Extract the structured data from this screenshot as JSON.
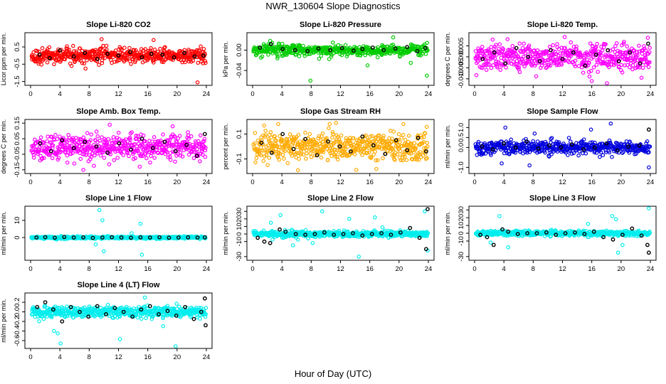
{
  "figure": {
    "title": "NWR_130604  Slope Diagnostics",
    "xlabel": "Hour of Day (UTC)"
  },
  "chart_data": [
    {
      "type": "scatter",
      "title": "Slope Li-820 CO2",
      "ylabel": "Licor ppm per min.",
      "xlim": [
        0,
        24
      ],
      "ylim": [
        -1.6,
        1.2
      ],
      "xticks": [
        "0",
        "4",
        "8",
        "12",
        "16",
        "20",
        "24"
      ],
      "yticks": [
        "-1.5",
        "-0.5",
        "0.5"
      ],
      "ytick_values": [
        -1.5,
        -0.5,
        0.5
      ],
      "series_color": "#ff0000",
      "spread": 0.32,
      "outliers": [
        [
          9.7,
          0.95
        ],
        [
          7.5,
          -0.75
        ],
        [
          16.8,
          0.9
        ],
        [
          22.8,
          -1.55
        ],
        [
          5.6,
          -0.6
        ],
        [
          3.2,
          -0.5
        ]
      ],
      "black_points": [
        [
          1.2,
          0.05
        ],
        [
          2.6,
          -0.15
        ],
        [
          4.0,
          0.3
        ],
        [
          5.9,
          -0.05
        ],
        [
          7.4,
          0.15
        ],
        [
          9.1,
          -0.2
        ],
        [
          10.5,
          0.1
        ],
        [
          12.0,
          0.0
        ],
        [
          13.6,
          0.2
        ],
        [
          15.2,
          -0.1
        ],
        [
          16.5,
          0.1
        ],
        [
          18.0,
          0.05
        ],
        [
          19.6,
          -0.1
        ],
        [
          21.0,
          0.15
        ],
        [
          22.4,
          -0.05
        ],
        [
          23.6,
          0.0
        ]
      ]
    },
    {
      "type": "scatter",
      "title": "Slope Li-820 Pressure",
      "ylabel": "kPa per min.",
      "xlim": [
        0,
        24
      ],
      "ylim": [
        -0.065,
        0.03
      ],
      "xticks": [
        "0",
        "4",
        "8",
        "12",
        "16",
        "20",
        "24"
      ],
      "yticks": [
        "-0.04",
        "0.00"
      ],
      "ytick_values": [
        -0.04,
        0.0
      ],
      "series_color": "#00cc00",
      "spread": 0.008,
      "outliers": [
        [
          7.9,
          -0.06
        ],
        [
          15.7,
          -0.03
        ],
        [
          19.2,
          0.025
        ],
        [
          23.8,
          -0.05
        ],
        [
          2.4,
          0.018
        ],
        [
          21.6,
          -0.025
        ]
      ],
      "black_points": [
        [
          1.0,
          0.005
        ],
        [
          2.5,
          0.012
        ],
        [
          4.1,
          0.002
        ],
        [
          5.8,
          0.0
        ],
        [
          7.5,
          -0.002
        ],
        [
          9.0,
          0.003
        ],
        [
          10.6,
          0.0
        ],
        [
          12.2,
          0.004
        ],
        [
          13.8,
          -0.001
        ],
        [
          15.0,
          0.002
        ],
        [
          16.4,
          0.005
        ],
        [
          17.9,
          0.0
        ],
        [
          19.5,
          0.003
        ],
        [
          21.1,
          0.006
        ],
        [
          22.5,
          -0.002
        ],
        [
          23.6,
          0.004
        ]
      ]
    },
    {
      "type": "scatter",
      "title": "Slope Li-820 Temp.",
      "ylabel": "degrees C per min.",
      "xlim": [
        0,
        24
      ],
      "ylim": [
        -0.012,
        0.01
      ],
      "xticks": [
        "0",
        "4",
        "8",
        "12",
        "16",
        "20",
        "24"
      ],
      "yticks": [
        "-0.010",
        "-0.005",
        "0.000",
        "0.005"
      ],
      "ytick_values": [
        -0.01,
        -0.005,
        0.0,
        0.005
      ],
      "series_color": "#ff00ff",
      "spread": 0.0045,
      "outliers": [
        [
          16.0,
          -0.011
        ],
        [
          12.3,
          0.009
        ],
        [
          22.8,
          -0.0095
        ],
        [
          4.5,
          0.008
        ]
      ],
      "black_points": [
        [
          1.1,
          -0.001
        ],
        [
          2.7,
          0.002
        ],
        [
          4.2,
          -0.003
        ],
        [
          5.7,
          0.004
        ],
        [
          7.3,
          0.0
        ],
        [
          8.9,
          -0.002
        ],
        [
          10.4,
          0.003
        ],
        [
          12.0,
          -0.001
        ],
        [
          13.5,
          0.002
        ],
        [
          15.1,
          -0.004
        ],
        [
          16.6,
          0.001
        ],
        [
          18.2,
          0.003
        ],
        [
          19.7,
          -0.002
        ],
        [
          21.2,
          0.002
        ],
        [
          22.6,
          -0.003
        ],
        [
          23.7,
          0.006
        ]
      ]
    },
    {
      "type": "scatter",
      "title": "Slope Amb. Box Temp.",
      "ylabel": "degrees C per min.",
      "xlim": [
        0,
        24
      ],
      "ylim": [
        -0.16,
        0.16
      ],
      "xticks": [
        "0",
        "4",
        "8",
        "12",
        "16",
        "20",
        "24"
      ],
      "yticks": [
        "-0.15",
        "-0.05",
        "0.05",
        "0.15"
      ],
      "ytick_values": [
        -0.15,
        -0.05,
        0.05,
        0.15
      ],
      "series_color": "#ff00ff",
      "spread": 0.06,
      "outliers": [
        [
          10.8,
          0.14
        ],
        [
          7.2,
          -0.15
        ],
        [
          19.4,
          0.13
        ],
        [
          14.9,
          -0.13
        ]
      ],
      "black_points": [
        [
          1.3,
          0.02
        ],
        [
          2.8,
          -0.03
        ],
        [
          4.3,
          0.04
        ],
        [
          5.9,
          -0.01
        ],
        [
          7.4,
          0.03
        ],
        [
          9.0,
          0.0
        ],
        [
          10.5,
          -0.04
        ],
        [
          12.1,
          0.02
        ],
        [
          13.7,
          -0.02
        ],
        [
          15.2,
          0.05
        ],
        [
          16.7,
          -0.01
        ],
        [
          18.3,
          0.03
        ],
        [
          19.8,
          -0.03
        ],
        [
          21.3,
          0.01
        ],
        [
          22.7,
          -0.06
        ],
        [
          23.8,
          0.08
        ]
      ]
    },
    {
      "type": "scatter",
      "title": "Slope Gas Stream RH",
      "ylabel": "percent per min.",
      "xlim": [
        0,
        24
      ],
      "ylim": [
        -0.2,
        0.2
      ],
      "xticks": [
        "0",
        "4",
        "8",
        "12",
        "16",
        "20",
        "24"
      ],
      "yticks": [
        "-0.1",
        "0.1"
      ],
      "ytick_values": [
        -0.1,
        0.1
      ],
      "series_color": "#ffaa00",
      "spread": 0.09,
      "outliers": [
        [
          3.5,
          0.18
        ],
        [
          6.2,
          -0.19
        ],
        [
          11.4,
          0.19
        ],
        [
          16.9,
          -0.18
        ],
        [
          20.6,
          0.18
        ]
      ],
      "black_points": [
        [
          1.2,
          0.03
        ],
        [
          2.6,
          -0.05
        ],
        [
          4.1,
          0.1
        ],
        [
          5.6,
          -0.02
        ],
        [
          7.2,
          0.06
        ],
        [
          8.8,
          -0.07
        ],
        [
          10.3,
          0.04
        ],
        [
          11.9,
          0.0
        ],
        [
          13.4,
          -0.04
        ],
        [
          15.0,
          0.08
        ],
        [
          16.5,
          0.01
        ],
        [
          18.1,
          -0.06
        ],
        [
          19.6,
          0.05
        ],
        [
          21.1,
          -0.03
        ],
        [
          22.6,
          0.07
        ],
        [
          23.7,
          -0.04
        ]
      ]
    },
    {
      "type": "scatter",
      "title": "Slope Sample Flow",
      "ylabel": "ml/min per min.",
      "xlim": [
        0,
        24
      ],
      "ylim": [
        -1.2,
        1.3
      ],
      "xticks": [
        "0",
        "4",
        "8",
        "12",
        "16",
        "20",
        "24"
      ],
      "yticks": [
        "-1.0",
        "0.0",
        "0.5",
        "1.0"
      ],
      "ytick_values": [
        -1.0,
        0.0,
        0.5,
        1.0
      ],
      "series_color": "#0000dd",
      "spread": 0.25,
      "outliers": [
        [
          3.7,
          -0.8
        ],
        [
          4.2,
          1.0
        ],
        [
          7.5,
          -0.9
        ],
        [
          15.9,
          0.9
        ],
        [
          18.6,
          1.2
        ],
        [
          23.8,
          -1.0
        ],
        [
          8.2,
          0.7
        ]
      ],
      "black_points": [
        [
          1.0,
          0.05
        ],
        [
          2.5,
          -0.1
        ],
        [
          4.0,
          0.2
        ],
        [
          5.6,
          0.0
        ],
        [
          7.1,
          0.3
        ],
        [
          8.7,
          -0.05
        ],
        [
          10.2,
          0.1
        ],
        [
          11.8,
          0.0
        ],
        [
          13.3,
          0.15
        ],
        [
          14.9,
          -0.1
        ],
        [
          16.4,
          0.0
        ],
        [
          18.0,
          0.2
        ],
        [
          19.5,
          -0.15
        ],
        [
          21.0,
          0.05
        ],
        [
          22.5,
          0.1
        ],
        [
          23.8,
          0.9
        ]
      ]
    },
    {
      "type": "scatter",
      "title": "Slope Line 1 Flow",
      "ylabel": "ml/min per min.",
      "xlim": [
        0,
        24
      ],
      "ylim": [
        -12,
        17
      ],
      "xticks": [
        "0",
        "4",
        "8",
        "12",
        "16",
        "20",
        "24"
      ],
      "yticks": [
        "0",
        "10"
      ],
      "ytick_values": [
        0,
        10
      ],
      "series_color": "#00eeee",
      "spread": 0.5,
      "outliers": [
        [
          9.4,
          16
        ],
        [
          8.9,
          -4
        ],
        [
          9.8,
          10
        ],
        [
          10.0,
          -8
        ],
        [
          15.0,
          8
        ],
        [
          15.2,
          -10
        ],
        [
          13.8,
          2.5
        ]
      ],
      "black_points": [
        [
          0.8,
          0.0
        ],
        [
          2.0,
          0.2
        ],
        [
          3.3,
          -0.1
        ],
        [
          4.6,
          0.3
        ],
        [
          5.9,
          0.0
        ],
        [
          7.2,
          0.1
        ],
        [
          8.5,
          -0.2
        ],
        [
          9.8,
          0.0
        ],
        [
          11.1,
          0.2
        ],
        [
          12.4,
          0.0
        ],
        [
          13.7,
          -0.1
        ],
        [
          15.0,
          0.1
        ],
        [
          16.3,
          0.0
        ],
        [
          17.6,
          0.2
        ],
        [
          18.9,
          -0.1
        ],
        [
          20.2,
          0.0
        ],
        [
          21.5,
          0.1
        ],
        [
          22.8,
          0.0
        ],
        [
          23.8,
          0.1
        ]
      ]
    },
    {
      "type": "scatter",
      "title": "Slope Line 2 Flow",
      "ylabel": "ml/min per min.",
      "xlim": [
        0,
        24
      ],
      "ylim": [
        -32,
        34
      ],
      "xticks": [
        "0",
        "4",
        "8",
        "12",
        "16",
        "20",
        "24"
      ],
      "yticks": [
        "-30",
        "-10",
        "0",
        "10",
        "20",
        "30"
      ],
      "ytick_values": [
        -30,
        -10,
        0,
        10,
        20,
        30
      ],
      "series_color": "#00eeee",
      "spread": 3.0,
      "outliers": [
        [
          2.5,
          15
        ],
        [
          3.8,
          25
        ],
        [
          9.5,
          30
        ],
        [
          14.5,
          -30
        ],
        [
          13.2,
          20
        ],
        [
          16.7,
          22
        ],
        [
          8.2,
          -12
        ],
        [
          23.9,
          -22
        ],
        [
          23.5,
          30
        ],
        [
          5.5,
          -15
        ]
      ],
      "black_points": [
        [
          0.7,
          -5
        ],
        [
          1.6,
          -10
        ],
        [
          2.4,
          -12
        ],
        [
          3.7,
          6
        ],
        [
          4.5,
          3
        ],
        [
          5.9,
          0
        ],
        [
          7.2,
          -1
        ],
        [
          8.5,
          0
        ],
        [
          9.8,
          2
        ],
        [
          11.1,
          -1
        ],
        [
          12.4,
          0
        ],
        [
          13.7,
          1
        ],
        [
          15.0,
          -2
        ],
        [
          16.3,
          0
        ],
        [
          17.6,
          1
        ],
        [
          18.9,
          -1
        ],
        [
          20.2,
          2
        ],
        [
          21.5,
          8
        ],
        [
          22.8,
          -5
        ],
        [
          23.7,
          -20
        ],
        [
          23.9,
          33
        ]
      ]
    },
    {
      "type": "scatter",
      "title": "Slope Line 3 Flow",
      "ylabel": "ml/min per min.",
      "xlim": [
        0,
        24
      ],
      "ylim": [
        -32,
        32
      ],
      "xticks": [
        "0",
        "4",
        "8",
        "12",
        "16",
        "20",
        "24"
      ],
      "yticks": [
        "-30",
        "-10",
        "0",
        "10",
        "20",
        "30"
      ],
      "ytick_values": [
        -30,
        -10,
        0,
        10,
        20,
        30
      ],
      "series_color": "#00eeee",
      "spread": 2.5,
      "outliers": [
        [
          3.4,
          22
        ],
        [
          4.6,
          -18
        ],
        [
          18.8,
          22
        ],
        [
          19.3,
          18
        ],
        [
          20.2,
          -15
        ],
        [
          19.6,
          -25
        ],
        [
          23.8,
          32
        ],
        [
          2.2,
          -12
        ],
        [
          15.5,
          12
        ]
      ],
      "black_points": [
        [
          0.8,
          -2
        ],
        [
          1.7,
          -5
        ],
        [
          2.6,
          -15
        ],
        [
          3.8,
          5
        ],
        [
          4.6,
          2
        ],
        [
          5.9,
          -1
        ],
        [
          7.2,
          0
        ],
        [
          8.5,
          0
        ],
        [
          9.8,
          1
        ],
        [
          11.1,
          -2
        ],
        [
          12.4,
          0
        ],
        [
          13.7,
          1
        ],
        [
          15.0,
          -1
        ],
        [
          16.3,
          2
        ],
        [
          17.6,
          -5
        ],
        [
          18.9,
          -8
        ],
        [
          20.2,
          -2
        ],
        [
          21.5,
          6
        ],
        [
          22.8,
          -3
        ],
        [
          23.6,
          -15
        ],
        [
          23.8,
          -25
        ]
      ]
    },
    {
      "type": "scatter",
      "title": "Slope Line 4 (LT) Flow",
      "ylabel": "ml/min per min.",
      "xlim": [
        0,
        24
      ],
      "ylim": [
        -0.72,
        0.35
      ],
      "xticks": [
        "0",
        "4",
        "8",
        "12",
        "16",
        "20",
        "24"
      ],
      "yticks": [
        "-0.6",
        "-0.4",
        "-0.2",
        "0.0",
        "0.2"
      ],
      "ytick_values": [
        -0.6,
        -0.4,
        -0.2,
        0.0,
        0.2
      ],
      "series_color": "#00eeee",
      "spread": 0.09,
      "outliers": [
        [
          3.2,
          -0.4
        ],
        [
          3.7,
          -0.45
        ],
        [
          4.1,
          -0.66
        ],
        [
          12.2,
          -0.57
        ],
        [
          19.8,
          -0.72
        ],
        [
          15.6,
          0.3
        ],
        [
          18.1,
          -0.3
        ]
      ],
      "black_points": [
        [
          0.9,
          0.1
        ],
        [
          2.0,
          0.2
        ],
        [
          3.1,
          0.05
        ],
        [
          4.3,
          -0.2
        ],
        [
          5.5,
          0.1
        ],
        [
          6.7,
          0.0
        ],
        [
          7.9,
          -0.1
        ],
        [
          9.1,
          0.12
        ],
        [
          10.3,
          -0.05
        ],
        [
          11.5,
          0.08
        ],
        [
          12.7,
          0.0
        ],
        [
          13.9,
          -0.1
        ],
        [
          15.1,
          0.05
        ],
        [
          16.3,
          0.12
        ],
        [
          17.5,
          -0.05
        ],
        [
          18.7,
          0.02
        ],
        [
          19.9,
          -0.08
        ],
        [
          21.1,
          0.1
        ],
        [
          22.3,
          -0.15
        ],
        [
          23.3,
          0.0
        ],
        [
          23.8,
          0.28
        ],
        [
          23.9,
          -0.28
        ]
      ]
    }
  ]
}
